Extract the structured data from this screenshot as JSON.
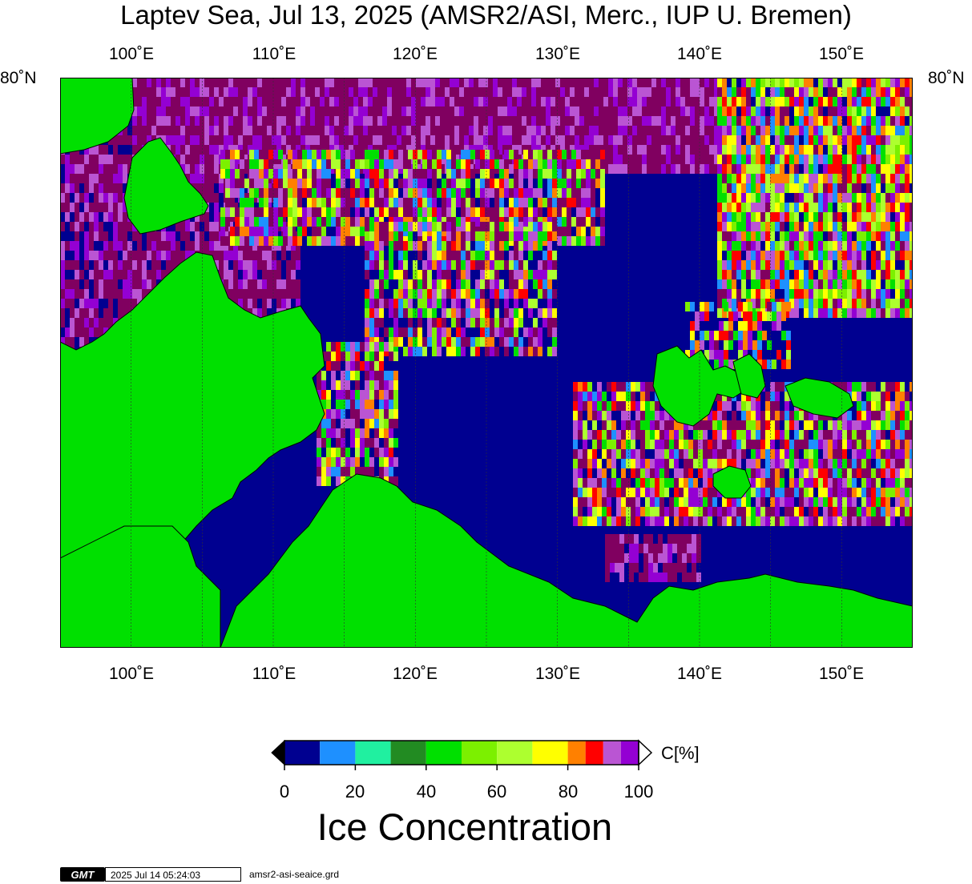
{
  "title": "Laptev Sea, Jul 13, 2025 (AMSR2/ASI, Merc., IUP U. Bremen)",
  "map": {
    "projection": "Mercator",
    "lon_range": [
      95,
      155
    ],
    "lon_ticks": [
      "100˚E",
      "110˚E",
      "120˚E",
      "130˚E",
      "140˚E",
      "150˚E"
    ],
    "lon_tick_values": [
      100,
      110,
      120,
      130,
      140,
      150
    ],
    "lat_label_left": "80˚N",
    "lat_label_right": "80˚N",
    "land_color": "#00e000",
    "ocean_open_water_color": "#000090",
    "pack_ice_color": "#800060"
  },
  "colorbar": {
    "label_unit": "C[%]",
    "tick_labels": [
      "0",
      "20",
      "40",
      "60",
      "80",
      "100"
    ],
    "colors": [
      "#000090",
      "#1e90ff",
      "#20f0a0",
      "#228b22",
      "#00e000",
      "#7cf000",
      "#adff2f",
      "#ffff00",
      "#ff8000",
      "#ff0000",
      "#ba55d3",
      "#9400d3"
    ],
    "title": "Ice Concentration"
  },
  "stamp": {
    "logo": "GMT",
    "timestamp": "2025 Jul 14 05:24:03",
    "filename": "amsr2-asi-seaice.grd"
  }
}
